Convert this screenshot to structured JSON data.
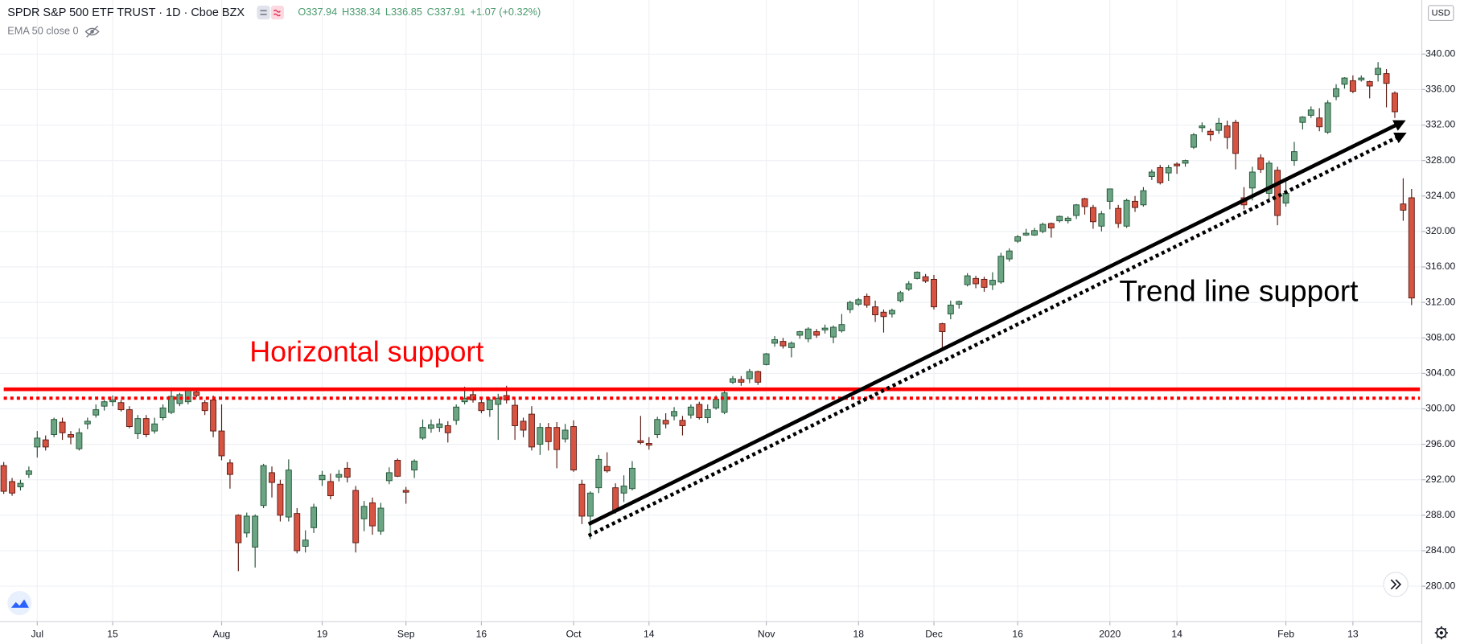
{
  "header": {
    "title": "SPDR S&P 500 ETF TRUST · 1D · Cboe BZX",
    "ohlc": [
      {
        "label": "O",
        "value": 337.94
      },
      {
        "label": "H",
        "value": 338.34
      },
      {
        "label": "L",
        "value": 336.85
      },
      {
        "label": "C",
        "value": 337.91
      }
    ],
    "change": "+1.07 (+0.32%)",
    "indicator": "EMA 50 close 0",
    "currency": "USD"
  },
  "chart_data": {
    "type": "candlestick",
    "up_color": "#6ba583",
    "up_border": "#225437",
    "down_color": "#d75442",
    "down_border": "#5b1a13",
    "grid": true,
    "ylim": [
      276.0,
      346.1
    ],
    "yticks": [
      {
        "value": 280,
        "label": "280.00"
      },
      {
        "value": 284,
        "label": "284.00"
      },
      {
        "value": 288,
        "label": "288.00"
      },
      {
        "value": 292,
        "label": "292.00"
      },
      {
        "value": 296,
        "label": "296.00"
      },
      {
        "value": 300,
        "label": "300.00"
      },
      {
        "value": 304,
        "label": "304.00"
      },
      {
        "value": 308,
        "label": "308.00"
      },
      {
        "value": 312,
        "label": "312.00"
      },
      {
        "value": 316,
        "label": "316.00"
      },
      {
        "value": 320,
        "label": "320.00"
      },
      {
        "value": 324,
        "label": "324.00"
      },
      {
        "value": 328,
        "label": "328.00"
      },
      {
        "value": 332,
        "label": "332.00"
      },
      {
        "value": 336,
        "label": "336.00"
      },
      {
        "value": 340,
        "label": "340.00"
      }
    ],
    "categories": [
      null,
      null,
      null,
      null,
      "Jul",
      null,
      null,
      null,
      null,
      null,
      null,
      null,
      null,
      "15",
      null,
      null,
      null,
      null,
      null,
      null,
      null,
      null,
      null,
      null,
      null,
      null,
      "Aug",
      null,
      null,
      null,
      null,
      null,
      null,
      null,
      null,
      null,
      null,
      null,
      "19",
      null,
      null,
      null,
      null,
      null,
      null,
      null,
      null,
      null,
      "Sep",
      null,
      null,
      null,
      null,
      null,
      null,
      null,
      null,
      "16",
      null,
      null,
      null,
      null,
      null,
      null,
      null,
      null,
      null,
      null,
      "Oct",
      null,
      null,
      null,
      null,
      null,
      null,
      null,
      null,
      "14",
      null,
      null,
      null,
      null,
      null,
      null,
      null,
      null,
      null,
      null,
      null,
      null,
      null,
      "Nov",
      null,
      null,
      null,
      null,
      null,
      null,
      null,
      null,
      null,
      null,
      "18",
      null,
      null,
      null,
      null,
      null,
      null,
      null,
      null,
      "Dec",
      null,
      null,
      null,
      null,
      null,
      null,
      null,
      null,
      null,
      "16",
      null,
      null,
      null,
      null,
      null,
      null,
      null,
      null,
      null,
      null,
      "2020",
      null,
      null,
      null,
      null,
      null,
      null,
      null,
      "14",
      null,
      null,
      null,
      null,
      null,
      null,
      null,
      null,
      null,
      null,
      null,
      null,
      "Feb",
      null,
      null,
      null,
      null,
      null,
      null,
      null,
      "13",
      null,
      null,
      null,
      null,
      null,
      null,
      null
    ],
    "open": [
      293.6,
      291.8,
      291.2,
      292.6,
      295.7,
      296.5,
      297.1,
      298.5,
      297.1,
      295.5,
      298.3,
      299.3,
      300.3,
      300.8,
      300.7,
      299.9,
      297.2,
      298.9,
      297.5,
      299.0,
      299.6,
      300.6,
      300.8,
      301.9,
      300.7,
      301.0,
      297.5,
      293.9,
      288.0,
      286.0,
      284.4,
      289.1,
      292.8,
      291.5,
      287.8,
      288.2,
      284.5,
      286.6,
      292.0,
      291.8,
      292.3,
      293.3,
      290.8,
      287.6,
      289.4,
      286.2,
      291.9,
      294.2,
      290.8,
      293.1,
      296.7,
      297.8,
      297.9,
      298.1,
      298.7,
      300.8,
      301.6,
      300.7,
      299.9,
      300.5,
      301.5,
      300.4,
      298.6,
      299.4,
      296.0,
      297.9,
      297.9,
      296.6,
      298.0,
      291.5,
      287.9,
      291.1,
      293.5,
      291.1,
      290.5,
      291.0,
      296.4,
      296.1,
      297.1,
      298.7,
      299.2,
      298.7,
      299.3,
      300.5,
      299.0,
      300.1,
      299.6,
      303.0,
      303.3,
      303.4,
      304.2,
      305.0,
      307.4,
      307.6,
      306.9,
      308.3,
      307.9,
      308.7,
      308.9,
      308.1,
      308.8,
      311.2,
      311.8,
      312.7,
      311.5,
      310.9,
      310.7,
      312.2,
      313.5,
      314.7,
      314.9,
      314.6,
      309.6,
      310.7,
      311.8,
      314.0,
      314.7,
      314.6,
      314.0,
      314.3,
      316.9,
      318.9,
      319.6,
      319.6,
      320.0,
      320.9,
      321.2,
      321.2,
      321.8,
      323.7,
      322.7,
      320.6,
      323.4,
      322.6,
      320.6,
      323.4,
      323.0,
      326.2,
      327.2,
      326.6,
      327.6,
      327.7,
      329.5,
      331.7,
      331.3,
      331.4,
      331.9,
      332.3,
      323.8,
      324.9,
      328.3,
      324.3,
      326.9,
      323.2,
      328.0,
      332.3,
      333.1,
      332.8,
      331.2,
      335.2,
      336.6,
      337.0,
      337.1,
      336.9,
      337.7,
      337.8,
      335.6,
      323.1,
      323.8
    ],
    "high": [
      294.0,
      292.2,
      292.0,
      293.5,
      297.5,
      297.0,
      299.0,
      299.0,
      297.5,
      297.8,
      299.0,
      300.5,
      301.0,
      301.5,
      301.0,
      300.3,
      299.3,
      299.3,
      299.0,
      300.5,
      302.0,
      301.8,
      302.3,
      302.2,
      301.0,
      301.5,
      300.5,
      294.3,
      288.1,
      288.3,
      288.1,
      293.8,
      293.5,
      292.0,
      294.3,
      288.8,
      286.3,
      289.3,
      293.0,
      292.7,
      293.1,
      294.0,
      291.3,
      289.6,
      290.0,
      289.4,
      293.4,
      294.4,
      291.2,
      294.3,
      298.8,
      298.8,
      298.9,
      298.6,
      300.5,
      302.5,
      302.0,
      301.3,
      301.3,
      301.7,
      302.6,
      301.3,
      299.0,
      300.3,
      298.4,
      298.4,
      298.5,
      298.3,
      298.7,
      292.0,
      290.7,
      294.8,
      295.1,
      291.6,
      292.5,
      294.1,
      299.2,
      296.8,
      299.1,
      299.5,
      300.2,
      299.2,
      300.5,
      300.8,
      300.5,
      301.5,
      302.1,
      303.7,
      303.7,
      304.5,
      304.3,
      306.3,
      308.2,
      308.0,
      307.6,
      308.8,
      309.2,
      309.0,
      309.5,
      309.4,
      310.7,
      312.2,
      312.5,
      313.0,
      312.2,
      311.2,
      311.3,
      313.3,
      314.4,
      315.5,
      315.2,
      315.1,
      309.7,
      312.2,
      312.2,
      315.3,
      315.0,
      314.9,
      315.4,
      317.6,
      318.1,
      319.6,
      320.3,
      320.4,
      321.0,
      321.0,
      321.8,
      321.7,
      323.1,
      323.8,
      323.0,
      322.3,
      324.8,
      323.0,
      323.7,
      324.0,
      325.0,
      327.0,
      327.5,
      327.5,
      327.8,
      328.1,
      331.1,
      332.3,
      331.6,
      332.8,
      332.5,
      332.6,
      325.0,
      327.3,
      328.7,
      328.0,
      327.3,
      325.8,
      330.1,
      333.0,
      334.1,
      333.9,
      334.8,
      336.6,
      337.4,
      337.6,
      337.6,
      337.0,
      339.1,
      338.3,
      335.8,
      326.0,
      324.8
    ],
    "low": [
      290.4,
      290.2,
      290.8,
      292.2,
      294.5,
      295.3,
      296.8,
      296.5,
      296.0,
      295.3,
      297.7,
      299.0,
      299.8,
      300.3,
      299.7,
      297.8,
      296.6,
      296.8,
      297.2,
      298.7,
      299.4,
      300.3,
      300.5,
      301.3,
      299.3,
      296.8,
      294.2,
      291.0,
      281.7,
      285.5,
      282.1,
      288.8,
      290.0,
      287.3,
      287.3,
      283.7,
      283.8,
      286.0,
      291.3,
      289.8,
      291.8,
      291.7,
      283.8,
      286.2,
      285.8,
      285.8,
      291.5,
      292.3,
      289.3,
      292.2,
      296.5,
      297.3,
      297.4,
      296.2,
      298.2,
      300.5,
      300.7,
      299.5,
      299.1,
      296.5,
      300.6,
      296.5,
      296.8,
      295.3,
      294.8,
      295.3,
      293.3,
      296.2,
      292.9,
      287.0,
      285.3,
      290.5,
      292.8,
      288.2,
      289.5,
      290.8,
      296.0,
      295.4,
      296.7,
      297.8,
      298.7,
      297.0,
      298.9,
      298.8,
      298.4,
      299.9,
      299.4,
      302.8,
      302.6,
      302.9,
      302.7,
      304.9,
      307.0,
      306.8,
      305.8,
      307.9,
      307.5,
      308.0,
      308.5,
      307.4,
      308.6,
      310.8,
      311.6,
      311.4,
      309.8,
      308.6,
      310.3,
      312.0,
      313.3,
      314.6,
      314.2,
      311.2,
      306.8,
      310.1,
      311.3,
      313.8,
      313.6,
      313.2,
      313.4,
      314.1,
      316.6,
      318.7,
      319.5,
      319.5,
      319.8,
      319.3,
      321.0,
      320.9,
      321.4,
      321.9,
      320.3,
      320.0,
      322.5,
      320.4,
      320.4,
      322.2,
      322.8,
      325.8,
      325.3,
      325.7,
      326.5,
      327.3,
      329.3,
      331.2,
      330.2,
      331.0,
      329.3,
      327.0,
      322.5,
      323.5,
      326.6,
      323.3,
      320.7,
      322.8,
      327.4,
      331.5,
      332.8,
      331.3,
      331.0,
      334.8,
      336.1,
      335.6,
      336.9,
      335.0,
      336.9,
      334.0,
      332.8,
      321.2,
      311.7
    ],
    "close": [
      290.7,
      290.5,
      291.6,
      293.0,
      296.7,
      295.7,
      298.8,
      297.3,
      296.8,
      297.3,
      298.6,
      299.9,
      300.8,
      301.0,
      299.9,
      298.0,
      298.9,
      297.1,
      298.3,
      300.1,
      301.4,
      301.6,
      302.1,
      301.5,
      299.8,
      297.5,
      294.7,
      292.6,
      284.9,
      287.9,
      287.9,
      293.6,
      291.7,
      288.0,
      293.1,
      284.0,
      285.2,
      288.9,
      292.5,
      290.2,
      292.6,
      292.3,
      284.9,
      289.0,
      286.8,
      288.8,
      292.8,
      292.4,
      290.6,
      294.1,
      297.9,
      298.2,
      298.3,
      297.3,
      300.2,
      301.2,
      301.0,
      299.8,
      301.0,
      301.2,
      301.0,
      298.1,
      297.6,
      295.7,
      297.9,
      296.3,
      295.4,
      297.6,
      293.1,
      287.9,
      290.5,
      294.3,
      293.0,
      288.6,
      291.3,
      293.3,
      296.2,
      295.9,
      298.8,
      298.3,
      299.7,
      298.1,
      300.2,
      299.0,
      299.9,
      301.1,
      301.8,
      303.4,
      303.0,
      304.2,
      303.0,
      306.2,
      307.8,
      307.1,
      307.4,
      308.7,
      309.0,
      308.3,
      309.1,
      309.2,
      309.5,
      312.0,
      312.3,
      311.7,
      310.6,
      310.4,
      311.1,
      313.1,
      314.1,
      315.4,
      314.4,
      311.5,
      308.7,
      311.7,
      312.1,
      315.0,
      314.1,
      313.7,
      314.5,
      317.2,
      317.8,
      319.4,
      319.8,
      320.1,
      320.8,
      320.4,
      321.7,
      321.5,
      323.0,
      322.8,
      321.1,
      322.0,
      324.8,
      320.9,
      323.5,
      322.7,
      324.6,
      326.7,
      325.5,
      327.2,
      327.4,
      328.0,
      330.9,
      331.9,
      330.9,
      332.2,
      330.6,
      328.8,
      323.0,
      326.7,
      327.0,
      327.7,
      321.8,
      324.3,
      329.0,
      332.9,
      333.7,
      331.8,
      334.5,
      336.1,
      337.3,
      335.8,
      337.3,
      336.4,
      338.4,
      336.7,
      333.5,
      322.4,
      312.5
    ],
    "support_color": "#ff0000",
    "support_levels": [
      {
        "value": 302.2,
        "style": "solid"
      },
      {
        "value": 301.2,
        "style": "dotted"
      }
    ],
    "trend_color": "#000000",
    "trend_lines": [
      {
        "x": [
          69.8,
          166.8
        ],
        "y": [
          287.0,
          332.3
        ],
        "style": "solid"
      },
      {
        "x": [
          69.8,
          166.9
        ],
        "y": [
          285.7,
          330.9
        ],
        "style": "dotted"
      }
    ],
    "annotations": [
      {
        "text": "Horizontal support",
        "color": "#ff0000"
      },
      {
        "text": "Trend line support",
        "color": "#000000"
      }
    ]
  }
}
